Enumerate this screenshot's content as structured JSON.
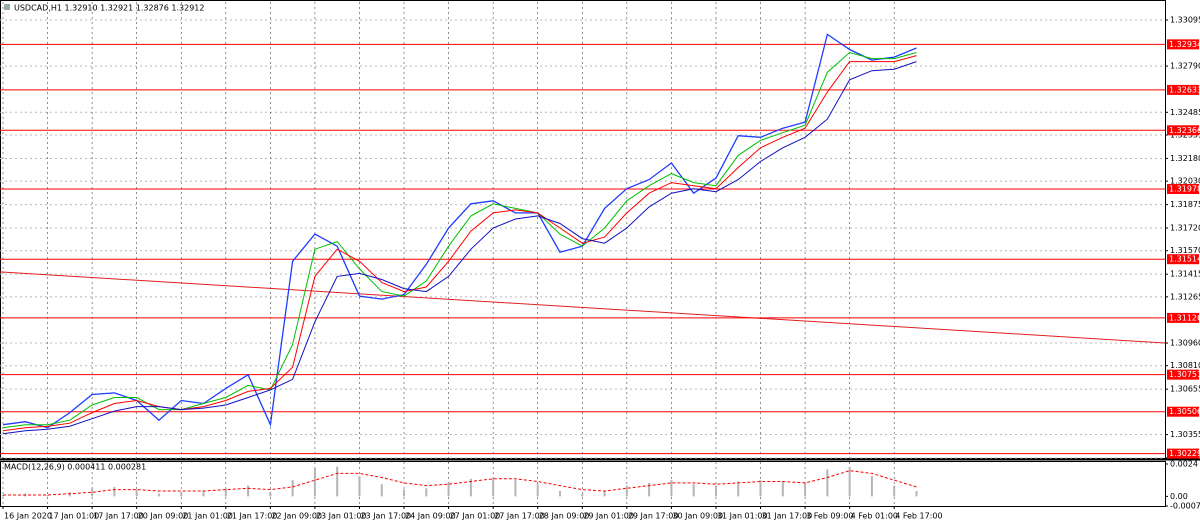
{
  "chart_data": [
    {
      "type": "line",
      "title": "USDCAD,H1  1.32910 1.32921 1.32876 1.32912",
      "categories": [
        "16 Jan 2020",
        null,
        "17 Jan 01:00",
        null,
        "17 Jan 17:00",
        null,
        "20 Jan 09:00",
        null,
        "21 Jan 01:00",
        null,
        "21 Jan 17:00",
        null,
        "22 Jan 09:00",
        null,
        "23 Jan 01:00",
        null,
        "23 Jan 17:00",
        null,
        "24 Jan 09:00",
        null,
        "27 Jan 01:00",
        null,
        "27 Jan 17:00",
        null,
        "28 Jan 09:00",
        null,
        "29 Jan 01:00",
        null,
        "29 Jan 17:00",
        null,
        "30 Jan 09:00",
        null,
        "31 Jan 01:00",
        null,
        "31 Jan 17:00",
        null,
        "3 Feb 09:00",
        null,
        "4 Feb 01:00",
        null,
        "4 Feb 17:00",
        null
      ],
      "series": [
        {
          "color": "#1e3cff",
          "values": [
            1.3042,
            1.3044,
            1.304,
            1.305,
            1.3062,
            1.3063,
            1.3058,
            1.3045,
            1.3058,
            1.3056,
            1.3066,
            1.3075,
            1.3042,
            1.315,
            1.3168,
            1.316,
            1.3127,
            1.3125,
            1.3128,
            1.3148,
            1.3172,
            1.3188,
            1.319,
            1.3182,
            1.3182,
            1.3156,
            1.316,
            1.3185,
            1.3198,
            1.3204,
            1.3215,
            1.3195,
            1.3205,
            1.3233,
            1.3232,
            1.3238,
            1.3242,
            1.33,
            1.329,
            1.3283,
            1.3285,
            1.3291
          ]
        },
        {
          "color": "#00c000",
          "values": [
            1.304,
            1.3042,
            1.3042,
            1.3045,
            1.3055,
            1.306,
            1.306,
            1.3052,
            1.3052,
            1.3056,
            1.306,
            1.3068,
            1.3065,
            1.3095,
            1.3158,
            1.3163,
            1.3145,
            1.313,
            1.3127,
            1.3137,
            1.316,
            1.318,
            1.3188,
            1.3185,
            1.3182,
            1.3168,
            1.316,
            1.3172,
            1.319,
            1.32,
            1.3208,
            1.3202,
            1.32,
            1.322,
            1.323,
            1.3235,
            1.324,
            1.3275,
            1.3288,
            1.3284,
            1.3284,
            1.3288
          ]
        },
        {
          "color": "#ff0000",
          "values": [
            1.3038,
            1.304,
            1.3041,
            1.3043,
            1.305,
            1.3056,
            1.3058,
            1.3054,
            1.3052,
            1.3054,
            1.3058,
            1.3064,
            1.3066,
            1.308,
            1.314,
            1.3158,
            1.315,
            1.3136,
            1.313,
            1.3133,
            1.315,
            1.317,
            1.3182,
            1.3184,
            1.3182,
            1.3172,
            1.3162,
            1.3166,
            1.3182,
            1.3195,
            1.3202,
            1.32,
            1.3198,
            1.3212,
            1.3225,
            1.3232,
            1.3238,
            1.3262,
            1.3282,
            1.3282,
            1.3282,
            1.3286
          ]
        },
        {
          "color": "#1010c0",
          "values": [
            1.3036,
            1.3038,
            1.3039,
            1.3041,
            1.3046,
            1.3051,
            1.3054,
            1.3054,
            1.3052,
            1.3053,
            1.3055,
            1.306,
            1.3065,
            1.3072,
            1.311,
            1.314,
            1.3142,
            1.3138,
            1.3132,
            1.313,
            1.314,
            1.3158,
            1.3172,
            1.3178,
            1.318,
            1.3175,
            1.3165,
            1.3162,
            1.3172,
            1.3186,
            1.3195,
            1.3198,
            1.3196,
            1.3204,
            1.3216,
            1.3225,
            1.3232,
            1.3244,
            1.327,
            1.3276,
            1.3277,
            1.3282
          ]
        }
      ],
      "ylim": [
        1.302,
        1.33214
      ],
      "yticks": [
        {
          "value": 1.33095,
          "label": "1.33095"
        },
        {
          "value": 1.3279,
          "label": "1.32790"
        },
        {
          "value": 1.32485,
          "label": "1.32485"
        },
        {
          "value": 1.32335,
          "label": "1.32335"
        },
        {
          "value": 1.3218,
          "label": "1.32180"
        },
        {
          "value": 1.3203,
          "label": "1.32030"
        },
        {
          "value": 1.31875,
          "label": "1.31875"
        },
        {
          "value": 1.3172,
          "label": "1.31720"
        },
        {
          "value": 1.3157,
          "label": "1.31570"
        },
        {
          "value": 1.31415,
          "label": "1.31415"
        },
        {
          "value": 1.31265,
          "label": "1.31265"
        },
        {
          "value": 1.3096,
          "label": "1.30960"
        },
        {
          "value": 1.3081,
          "label": "1.30810"
        },
        {
          "value": 1.30655,
          "label": "1.30655"
        },
        {
          "value": 1.30355,
          "label": "1.30355"
        },
        {
          "value": 1.302,
          "label": "1.30200"
        }
      ],
      "levels": {
        "color": "#ff0000",
        "values": [
          1.32934,
          1.32633,
          1.32366,
          1.31978,
          1.31514,
          1.31126,
          1.30751,
          1.30506,
          1.30229
        ]
      },
      "trendline": {
        "color": "#e02020",
        "values": [
          1.3143,
          1.3096
        ]
      },
      "grid": true
    },
    {
      "type": "bar",
      "title": "MACD(12,26,9) 0.000411 0.000281",
      "ylim": [
        -0.000713,
        0.0024
      ],
      "yticks": [
        0.0024,
        {
          "value": 0,
          "label": "0.00"
        },
        -0.000713
      ],
      "series": [
        {
          "type": "bar",
          "color": "#b4b4b4",
          "values": [
            0.0001,
            0.0002,
            0.0001,
            0.0003,
            0.0006,
            0.0007,
            0.0005,
            0.0002,
            0.0003,
            0.0004,
            0.0006,
            0.0008,
            0.0003,
            0.0012,
            0.0021,
            0.0022,
            0.0015,
            0.0009,
            0.0005,
            0.0006,
            0.001,
            0.0013,
            0.0014,
            0.0012,
            0.0009,
            0.0004,
            0.0002,
            0.0004,
            0.0008,
            0.001,
            0.0012,
            0.0009,
            0.0008,
            0.0011,
            0.0012,
            0.0011,
            0.001,
            0.002,
            0.0022,
            0.0015,
            0.0008,
            0.0004
          ]
        },
        {
          "type": "line",
          "color": "#ff0000",
          "values": [
            0.0001,
            0.0001,
            0.0001,
            0.0002,
            0.0003,
            0.0005,
            0.0005,
            0.0004,
            0.0004,
            0.0004,
            0.0005,
            0.0006,
            0.0005,
            0.0007,
            0.0012,
            0.0017,
            0.0017,
            0.0014,
            0.001,
            0.0008,
            0.0009,
            0.0011,
            0.0013,
            0.0013,
            0.0011,
            0.0008,
            0.0005,
            0.0004,
            0.0006,
            0.0008,
            0.001,
            0.001,
            0.0009,
            0.001,
            0.0011,
            0.0011,
            0.001,
            0.0014,
            0.0019,
            0.0017,
            0.0012,
            0.0007
          ]
        }
      ]
    }
  ]
}
